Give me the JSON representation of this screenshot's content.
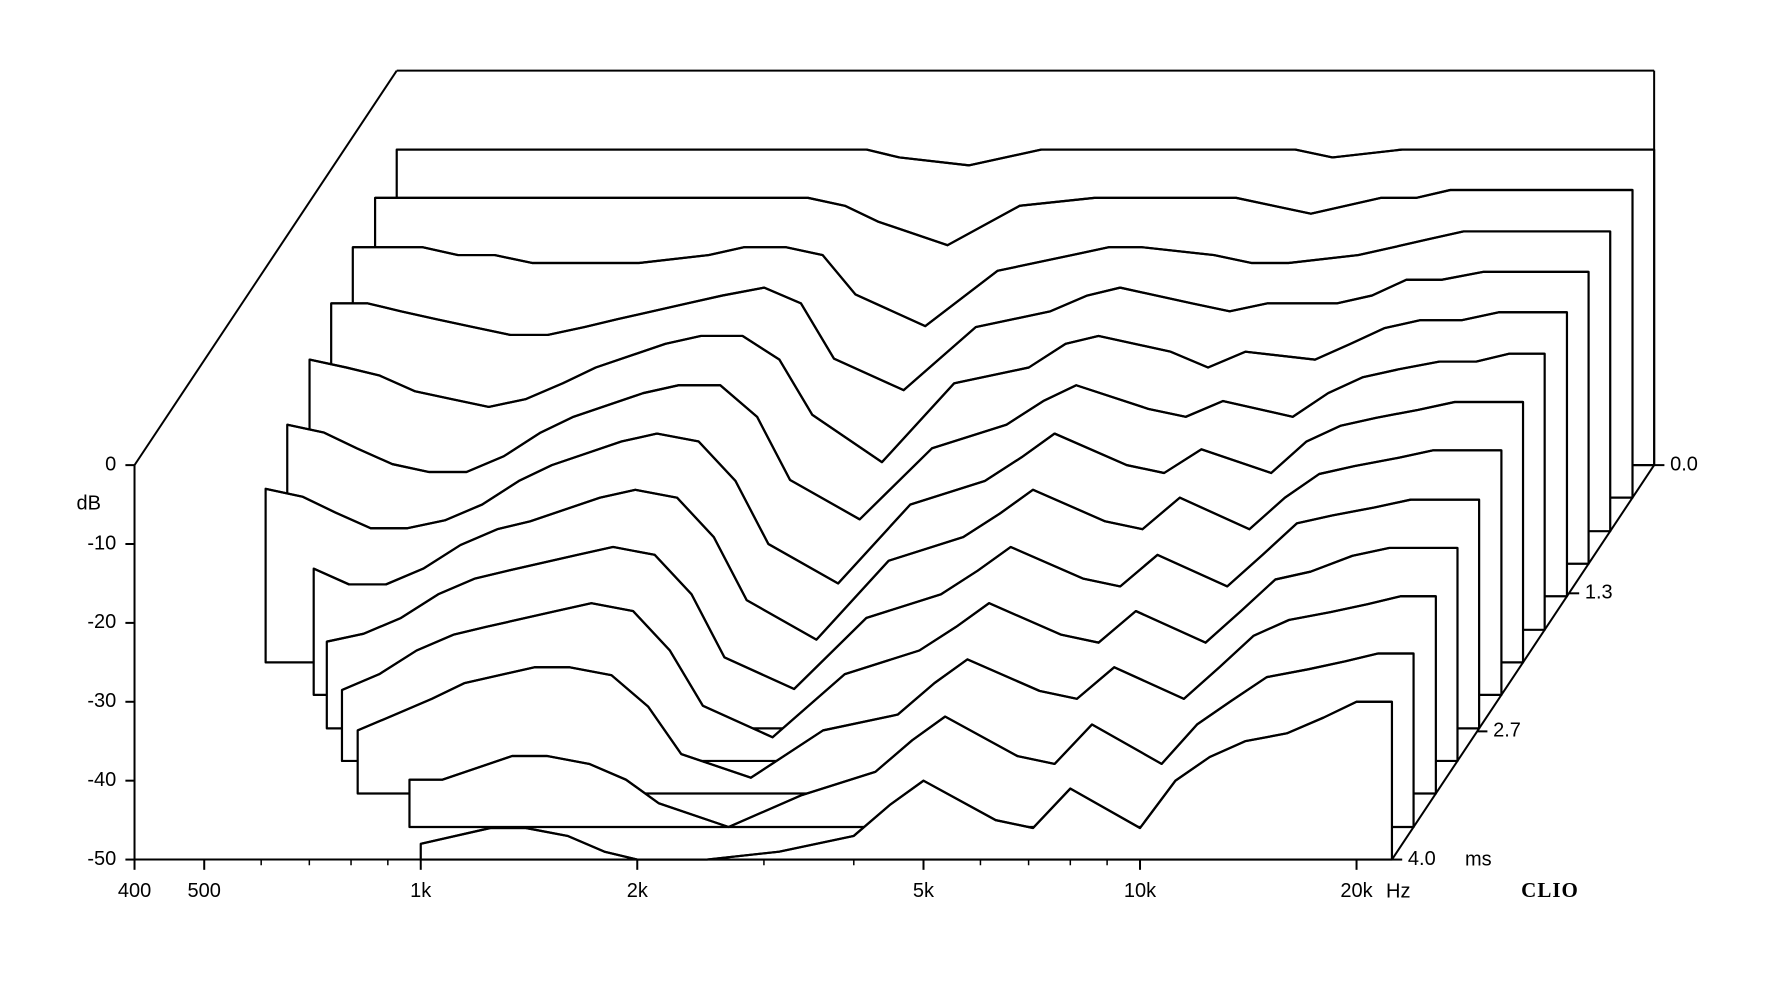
{
  "chart_data": {
    "type": "waterfall",
    "brand": "CLIO",
    "ylabel": "dB",
    "xlabel": "Hz",
    "zlabel": "ms",
    "color": "#000000",
    "xscale": "log",
    "xlim": [
      400,
      22400
    ],
    "ylim": [
      -50,
      0
    ],
    "zlim": [
      0,
      4
    ],
    "xticks": [
      400,
      500,
      {
        "value": 1000,
        "label": "1k"
      },
      {
        "value": 2000,
        "label": "2k"
      },
      {
        "value": 5000,
        "label": "5k"
      },
      {
        "value": 10000,
        "label": "10k"
      },
      {
        "value": 20000,
        "label": "20k"
      }
    ],
    "xminorticks": [
      600,
      700,
      800,
      900,
      3000,
      4000,
      6000,
      7000,
      8000,
      9000
    ],
    "yticks": [
      0,
      -10,
      -20,
      -30,
      -40,
      -50
    ],
    "zticks": [
      {
        "value": 0,
        "label": "0.0"
      },
      1.3,
      2.7,
      {
        "value": 4,
        "label": "4.0"
      }
    ],
    "x": [
      400,
      450,
      500,
      560,
      630,
      710,
      800,
      900,
      1000,
      1250,
      1400,
      1600,
      1800,
      2000,
      2500,
      3150,
      4000,
      4500,
      5000,
      6300,
      7100,
      8000,
      10000,
      11200,
      12500,
      14000,
      16000,
      18000,
      20000,
      22400
    ],
    "slices": [
      {
        "t": 0,
        "values": [
          -10,
          -10,
          -10,
          -10,
          -10,
          -10,
          -10,
          -10,
          -10,
          -10,
          -10,
          -10,
          -10,
          -11,
          -12,
          -10,
          -10,
          -10,
          -10,
          -10,
          -10,
          -11,
          -10,
          -10,
          -10,
          -10,
          -10,
          -10,
          -10,
          -10
        ]
      },
      {
        "t": 0.33,
        "values": [
          -12,
          -12,
          -12,
          -12,
          -12,
          -12,
          -12,
          -12,
          -12,
          -12,
          -12,
          -12,
          -13,
          -15,
          -18,
          -13,
          -12,
          -12,
          -12,
          -12,
          -13,
          -14,
          -12,
          -12,
          -11,
          -11,
          -11,
          -11,
          -11,
          -11
        ]
      },
      {
        "t": 0.67,
        "values": [
          -14,
          -14,
          -14,
          -15,
          -15,
          -16,
          -16,
          -16,
          -16,
          -15,
          -14,
          -14,
          -15,
          -20,
          -24,
          -17,
          -15,
          -14,
          -14,
          -15,
          -16,
          -16,
          -15,
          -14,
          -13,
          -12,
          -12,
          -12,
          -12,
          -12
        ]
      },
      {
        "t": 1.0,
        "values": [
          -17,
          -17,
          -18,
          -19,
          -20,
          -21,
          -21,
          -20,
          -19,
          -17,
          -16,
          -15,
          -17,
          -24,
          -28,
          -20,
          -18,
          -16,
          -15,
          -17,
          -18,
          -17,
          -17,
          -16,
          -14,
          -14,
          -13,
          -13,
          -13,
          -13
        ]
      },
      {
        "t": 1.33,
        "values": [
          -20,
          -21,
          -22,
          -24,
          -25,
          -26,
          -25,
          -23,
          -21,
          -18,
          -17,
          -17,
          -20,
          -27,
          -33,
          -23,
          -21,
          -18,
          -17,
          -19,
          -21,
          -19,
          -20,
          -18,
          -16,
          -15,
          -15,
          -14,
          -14,
          -14
        ]
      },
      {
        "t": 1.67,
        "values": [
          -24,
          -25,
          -27,
          -29,
          -30,
          -30,
          -28,
          -25,
          -23,
          -20,
          -19,
          -19,
          -23,
          -31,
          -36,
          -27,
          -24,
          -21,
          -19,
          -22,
          -23,
          -21,
          -23,
          -20,
          -18,
          -17,
          -16,
          -16,
          -15,
          -15
        ]
      },
      {
        "t": 2.0,
        "values": [
          -28,
          -29,
          -31,
          -33,
          -33,
          -32,
          -30,
          -27,
          -25,
          -22,
          -21,
          -22,
          -27,
          -35,
          -40,
          -30,
          -27,
          -24,
          -21,
          -25,
          -26,
          -23,
          -26,
          -22,
          -20,
          -19,
          -18,
          -17,
          -17,
          -17
        ]
      },
      {
        "t": 2.33,
        "values": [
          null,
          null,
          -34,
          -36,
          -36,
          -34,
          -31,
          -29,
          -28,
          -25,
          -24,
          -25,
          -30,
          -38,
          -43,
          -33,
          -30,
          -27,
          -24,
          -28,
          -29,
          -25,
          -29,
          -25,
          -22,
          -21,
          -20,
          -19,
          -19,
          -19
        ]
      },
      {
        "t": 2.67,
        "values": [
          null,
          null,
          null,
          -39,
          -38,
          -36,
          -33,
          -31,
          -30,
          -28,
          -27,
          -28,
          -33,
          -41,
          -45,
          -36,
          -33,
          -30,
          -27,
          -31,
          -32,
          -28,
          -32,
          -28,
          -24,
          -23,
          -22,
          -21,
          -21,
          -21
        ]
      },
      {
        "t": 3.0,
        "values": [
          null,
          null,
          null,
          null,
          -41,
          -39,
          -36,
          -34,
          -33,
          -31,
          -30,
          -31,
          -36,
          -43,
          -47,
          -39,
          -36,
          -33,
          -30,
          -34,
          -35,
          -31,
          -35,
          -31,
          -27,
          -26,
          -24,
          -23,
          -23,
          -23
        ]
      },
      {
        "t": 3.33,
        "values": [
          null,
          null,
          null,
          null,
          null,
          -42,
          -40,
          -38,
          -36,
          -34,
          -34,
          -35,
          -39,
          -45,
          -48,
          -42,
          -40,
          -36,
          -33,
          -37,
          -38,
          -34,
          -38,
          -34,
          -30,
          -28,
          -27,
          -26,
          -25,
          -25
        ]
      },
      {
        "t": 3.67,
        "values": [
          null,
          null,
          null,
          null,
          null,
          null,
          null,
          -44,
          -44,
          -41,
          -41,
          -42,
          -44,
          -47,
          -50,
          -46,
          -43,
          -39,
          -36,
          -41,
          -42,
          -37,
          -42,
          -37,
          -34,
          -31,
          -30,
          -29,
          -28,
          -28
        ]
      },
      {
        "t": 4.0,
        "values": [
          null,
          null,
          null,
          null,
          null,
          null,
          null,
          null,
          -48,
          -46,
          -46,
          -47,
          -49,
          -50,
          -50,
          -49,
          -47,
          -43,
          -40,
          -45,
          -46,
          -41,
          -46,
          -40,
          -37,
          -35,
          -34,
          -32,
          -30,
          -30
        ]
      }
    ]
  }
}
